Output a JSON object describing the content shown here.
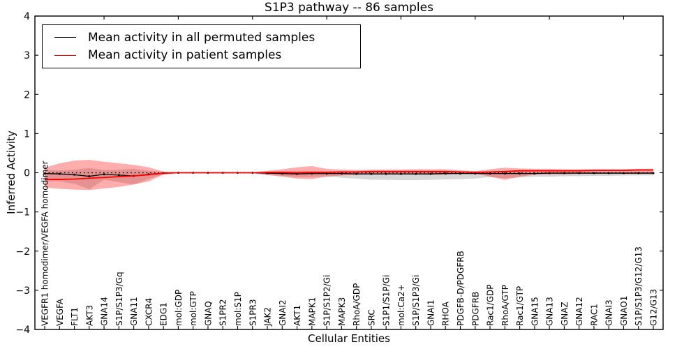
{
  "chart_data": {
    "type": "line",
    "title": "S1P3 pathway -- 86 samples",
    "xlabel": "Cellular Entities",
    "ylabel": "Inferred Activity",
    "ylim": [
      -4,
      4
    ],
    "ytick_labels": [
      "4",
      "3",
      "2",
      "1",
      "0",
      "−1",
      "−2",
      "−3",
      "−4"
    ],
    "grid": false,
    "legend_position": "upper left",
    "zero_line": {
      "style": "dotted",
      "color": "#000000",
      "value": 0
    },
    "top_ticks_every": 5,
    "categories": [
      "VEGFR1 homodimer/VEGFA homodimer",
      "VEGFA",
      "FLT1",
      "AKT3",
      "GNA14",
      "S1P/S1P3/Gq",
      "GNA11",
      "CXCR4",
      "EDG1",
      "mol:GDP",
      "mol:GTP",
      "GNAQ",
      "S1PR2",
      "mol:S1P",
      "S1PR3",
      "JAK2",
      "GNAI2",
      "AKT1",
      "MAPK1",
      "S1P/S1P2/Gi",
      "MAPK3",
      "RhoA/GDP",
      "SRC",
      "S1P1/S1P/Gi",
      "mol:Ca2+",
      "S1P/S1P3/Gi",
      "GNAI1",
      "RHOA",
      "PDGFB-D/PDGFRB",
      "PDGFRB",
      "Rac1/GDP",
      "RhoA/GTP",
      "Rac1/GTP",
      "GNA15",
      "GNA13",
      "GNAZ",
      "GNA12",
      "RAC1",
      "GNAI3",
      "GNAO1",
      "S1P/S1P3/G12/G13",
      "G12/G13"
    ],
    "series": [
      {
        "name": "Mean activity in all permuted samples",
        "color": "#000000",
        "band_color": "rgba(110,110,110,0.28)",
        "markers": true,
        "mean": [
          -0.02,
          -0.03,
          -0.05,
          -0.09,
          -0.04,
          -0.06,
          -0.08,
          -0.04,
          -0.01,
          0,
          0,
          0,
          0,
          0,
          0,
          -0.01,
          -0.02,
          -0.03,
          -0.02,
          -0.02,
          -0.02,
          -0.03,
          -0.03,
          -0.03,
          -0.03,
          -0.03,
          -0.03,
          -0.02,
          -0.02,
          -0.02,
          -0.02,
          -0.02,
          -0.02,
          -0.02,
          -0.01,
          -0.01,
          -0.01,
          -0.01,
          -0.01,
          -0.01,
          -0.01,
          -0.01
        ],
        "upper": [
          0.06,
          0.06,
          0.08,
          0.12,
          0.07,
          0.08,
          0.1,
          0.05,
          0.02,
          0.01,
          0.01,
          0.01,
          0.01,
          0.01,
          0.01,
          0.03,
          0.04,
          0.05,
          0.05,
          0.04,
          0.04,
          0.04,
          0.05,
          0.05,
          0.05,
          0.05,
          0.05,
          0.04,
          0.04,
          0.04,
          0.03,
          0.04,
          0.04,
          0.03,
          0.03,
          0.03,
          0.03,
          0.03,
          0.03,
          0.03,
          0.03,
          0.03
        ],
        "lower": [
          -0.22,
          -0.22,
          -0.28,
          -0.42,
          -0.18,
          -0.24,
          -0.3,
          -0.16,
          -0.04,
          -0.01,
          -0.01,
          -0.01,
          -0.01,
          -0.01,
          -0.01,
          -0.05,
          -0.08,
          -0.11,
          -0.11,
          -0.09,
          -0.13,
          -0.15,
          -0.18,
          -0.18,
          -0.19,
          -0.19,
          -0.18,
          -0.17,
          -0.16,
          -0.15,
          -0.11,
          -0.14,
          -0.12,
          -0.1,
          -0.1,
          -0.09,
          -0.09,
          -0.08,
          -0.08,
          -0.07,
          -0.07,
          -0.07
        ]
      },
      {
        "name": "Mean activity in patient samples",
        "color": "#ff0000",
        "band_color": "rgba(255,0,0,0.32)",
        "markers": false,
        "mean": [
          -0.17,
          -0.17,
          -0.16,
          -0.14,
          -0.12,
          -0.1,
          -0.08,
          -0.05,
          -0.01,
          0,
          0,
          0,
          0,
          0,
          0,
          0.01,
          0.01,
          0.0,
          0.01,
          0.01,
          0.02,
          0.02,
          0.03,
          0.03,
          0.03,
          0.03,
          0.03,
          0.03,
          0.02,
          0.01,
          0.02,
          0.03,
          0.05,
          0.05,
          0.05,
          0.05,
          0.05,
          0.06,
          0.06,
          0.06,
          0.07,
          0.07
        ],
        "upper": [
          0.13,
          0.24,
          0.31,
          0.33,
          0.28,
          0.24,
          0.2,
          0.14,
          0.03,
          0.01,
          0.01,
          0.01,
          0.01,
          0.01,
          0.01,
          0.05,
          0.09,
          0.14,
          0.17,
          0.1,
          0.08,
          0.07,
          0.08,
          0.08,
          0.08,
          0.09,
          0.09,
          0.09,
          0.06,
          0.04,
          0.09,
          0.13,
          0.11,
          0.1,
          0.1,
          0.09,
          0.09,
          0.09,
          0.09,
          0.09,
          0.1,
          0.1
        ],
        "lower": [
          -0.38,
          -0.41,
          -0.43,
          -0.44,
          -0.4,
          -0.36,
          -0.3,
          -0.22,
          -0.05,
          -0.01,
          -0.01,
          -0.01,
          -0.01,
          -0.01,
          -0.01,
          -0.06,
          -0.1,
          -0.15,
          -0.16,
          -0.1,
          -0.07,
          -0.05,
          -0.04,
          -0.04,
          -0.04,
          -0.05,
          -0.05,
          -0.05,
          -0.03,
          -0.02,
          -0.1,
          -0.18,
          -0.1,
          -0.05,
          -0.04,
          -0.04,
          -0.03,
          -0.03,
          -0.03,
          -0.03,
          -0.03,
          -0.03
        ]
      }
    ]
  }
}
